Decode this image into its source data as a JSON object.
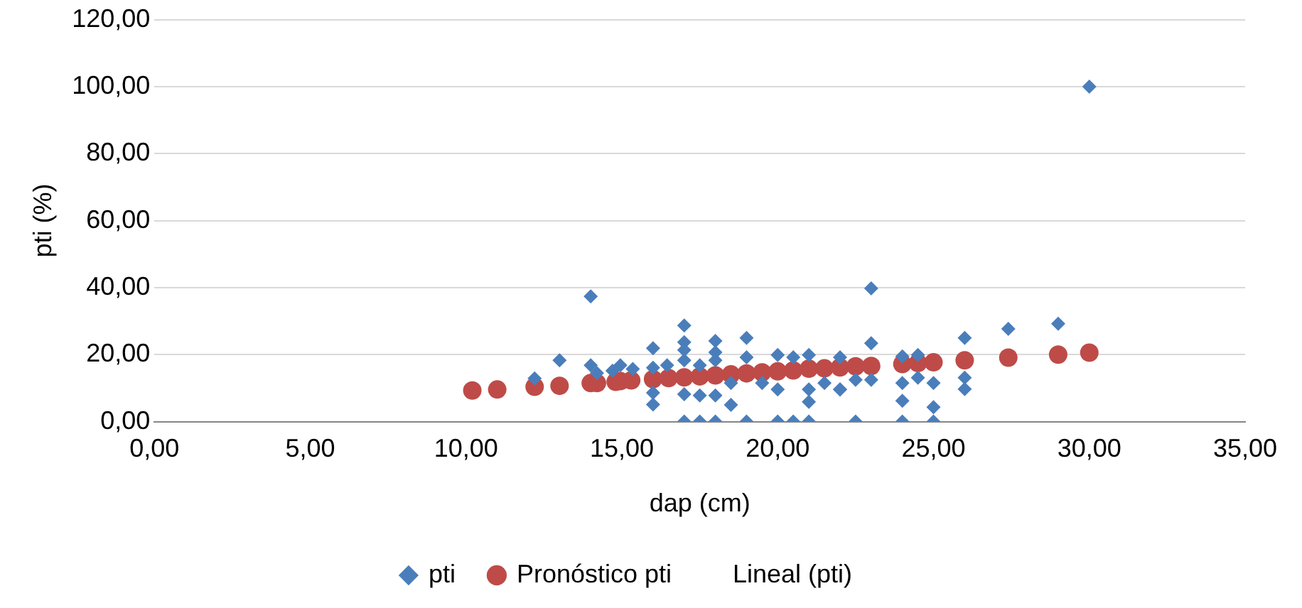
{
  "chart_data": {
    "type": "scatter",
    "xlabel": "dap (cm)",
    "ylabel": "pti (%)",
    "xlim": [
      0,
      35
    ],
    "xticks": [
      {
        "value": 0,
        "label": "0,00"
      },
      {
        "value": 5,
        "label": "5,00"
      },
      {
        "value": 10,
        "label": "10,00"
      },
      {
        "value": 15,
        "label": "15,00"
      },
      {
        "value": 20,
        "label": "20,00"
      },
      {
        "value": 25,
        "label": "25,00"
      },
      {
        "value": 30,
        "label": "30,00"
      },
      {
        "value": 35,
        "label": "35,00"
      }
    ],
    "ylim": [
      0,
      120
    ],
    "yticks": [
      {
        "value": 0,
        "label": "0,00"
      },
      {
        "value": 20,
        "label": "20,00"
      },
      {
        "value": 40,
        "label": "40,00"
      },
      {
        "value": 60,
        "label": "60,00"
      },
      {
        "value": 80,
        "label": "80,00"
      },
      {
        "value": 100,
        "label": "100,00"
      },
      {
        "value": 120,
        "label": "120,00"
      }
    ],
    "grid": "y",
    "legend": "bottom",
    "series": [
      {
        "name": "pti",
        "color": "#4a7ebb",
        "marker": "diamond",
        "x": [
          14.0,
          13.0,
          12.2,
          14.0,
          14.2,
          14.95,
          15.35,
          14.7,
          16.0,
          16.0,
          16.0,
          16.0,
          16.45,
          17.0,
          17.0,
          17.0,
          17.0,
          17.0,
          17.0,
          17.5,
          17.5,
          17.5,
          18.0,
          18.0,
          18.0,
          18.0,
          18.0,
          18.5,
          18.5,
          19.0,
          19.0,
          19.0,
          19.5,
          20.0,
          20.0,
          20.0,
          20.5,
          20.5,
          21.0,
          21.0,
          21.0,
          21.0,
          21.5,
          22.0,
          23.0,
          23.0,
          23.0,
          22.0,
          22.0,
          22.5,
          22.5,
          24.0,
          24.0,
          24.0,
          24.0,
          24.5,
          24.5,
          25.0,
          25.0,
          25.0,
          26.0,
          26.0,
          26.0,
          27.4,
          29.0,
          30.0
        ],
        "values": [
          37.4,
          18.3,
          12.9,
          16.8,
          14.5,
          16.8,
          15.7,
          15.2,
          21.9,
          16.1,
          8.6,
          5.1,
          16.8,
          28.7,
          23.7,
          21.4,
          18.3,
          8.2,
          0,
          16.8,
          7.8,
          0,
          24.1,
          20.7,
          18.3,
          7.8,
          0,
          5.0,
          11.5,
          25.0,
          19.2,
          0,
          11.5,
          19.9,
          9.6,
          0,
          19.2,
          0,
          19.9,
          9.6,
          5.9,
          0,
          11.5,
          9.6,
          39.8,
          23.4,
          12.5,
          19.2,
          9.6,
          12.5,
          0,
          19.5,
          11.5,
          6.2,
          0,
          19.9,
          13.1,
          11.5,
          4.3,
          0,
          25.0,
          13.1,
          9.7,
          27.7,
          29.2,
          100
        ]
      },
      {
        "name": "Pronóstico pti",
        "color": "#be4b48",
        "marker": "circle",
        "x": [
          10.2,
          11.0,
          12.2,
          13.0,
          14.0,
          14.2,
          14.8,
          14.95,
          15.3,
          16.0,
          16.5,
          17.0,
          17.5,
          18.0,
          18.5,
          19.0,
          19.5,
          20.0,
          20.5,
          21.0,
          21.5,
          22.0,
          22.5,
          23.0,
          24.0,
          24.5,
          25.0,
          26.0,
          27.4,
          29.0,
          30.0
        ],
        "values": [
          9.3,
          9.6,
          10.4,
          10.7,
          11.5,
          11.5,
          11.9,
          12.1,
          12.3,
          12.7,
          13.0,
          13.2,
          13.5,
          13.8,
          14.1,
          14.4,
          14.7,
          15.0,
          15.3,
          15.8,
          15.9,
          16.2,
          16.5,
          16.6,
          17.2,
          17.5,
          17.7,
          18.3,
          19.1,
          20.0,
          20.6
        ]
      }
    ],
    "annotations": [
      "Lineal (pti)"
    ]
  }
}
